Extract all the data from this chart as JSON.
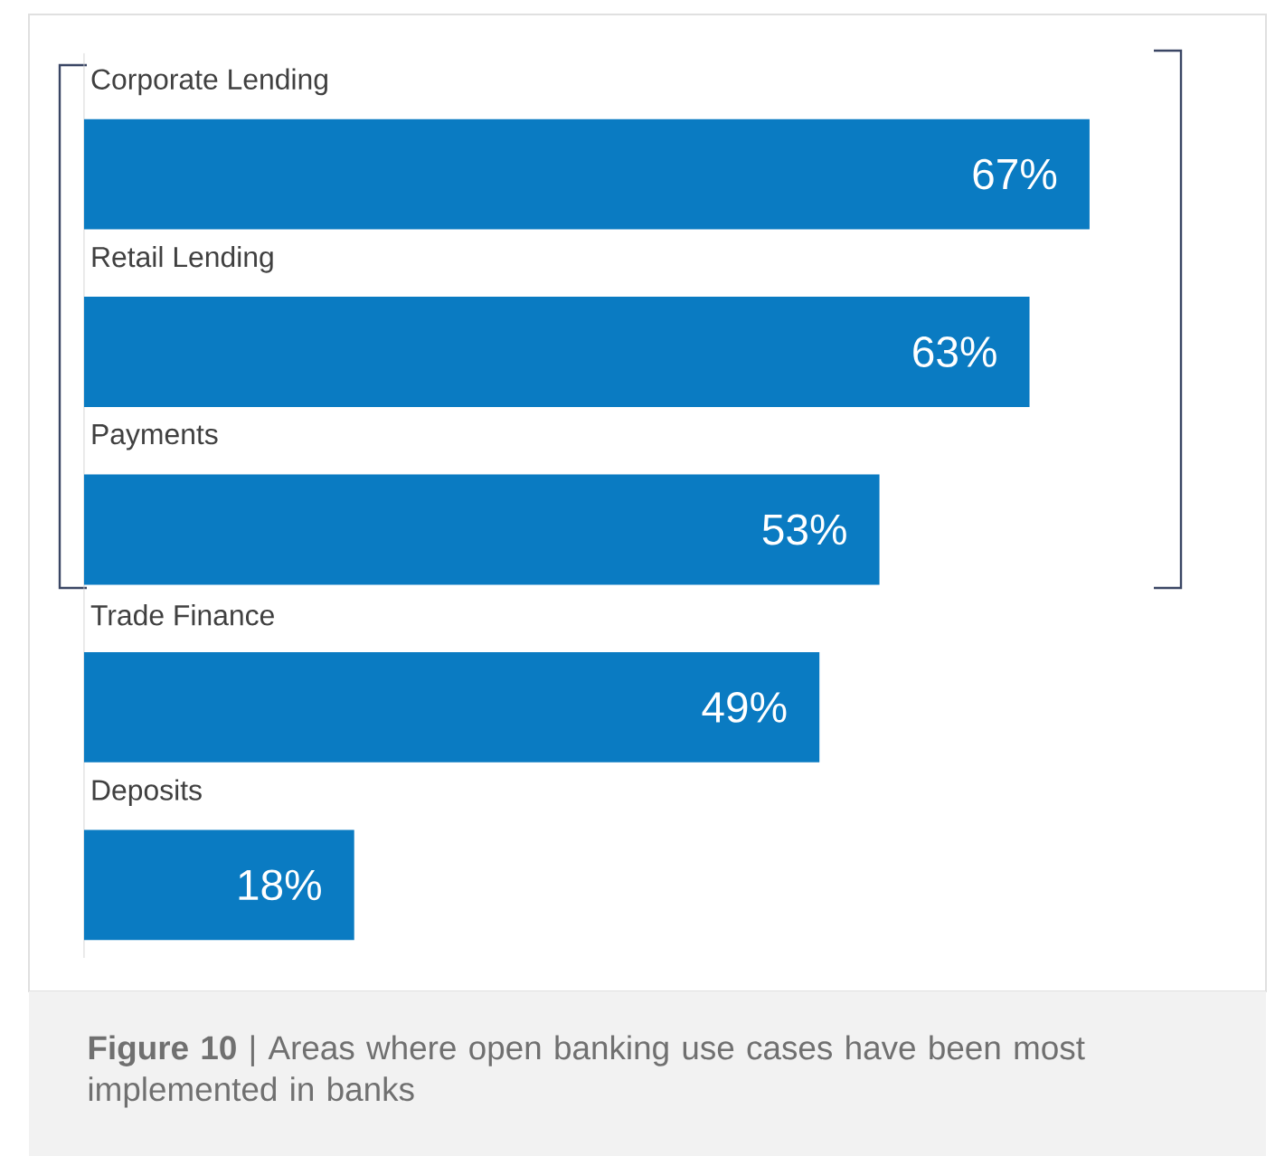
{
  "chart_data": {
    "type": "bar",
    "orientation": "horizontal",
    "categories": [
      "Corporate Lending",
      "Retail Lending",
      "Payments",
      "Trade Finance",
      "Deposits"
    ],
    "values": [
      67,
      63,
      53,
      49,
      18
    ],
    "value_labels": [
      "67%",
      "63%",
      "53%",
      "49%",
      "18%"
    ],
    "color": "#0a7bc2",
    "tick_labels": "y",
    "annotations": [
      "**Figure 10** | Areas where open banking use cases have been most implemented in banks"
    ]
  }
}
